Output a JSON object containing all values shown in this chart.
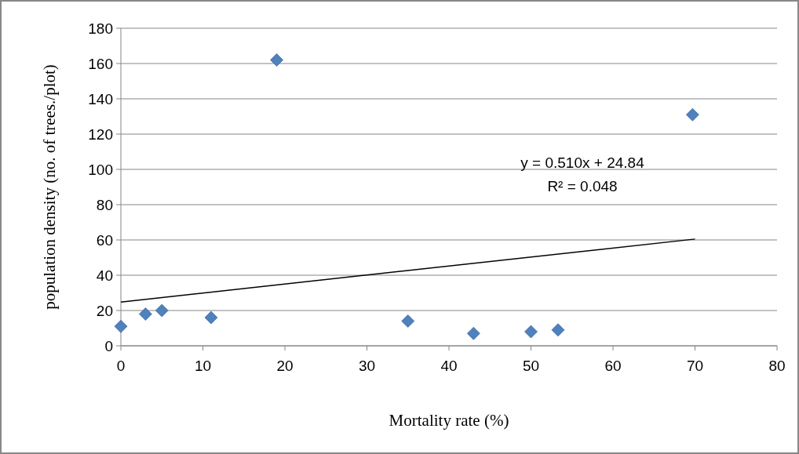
{
  "chart_data": {
    "type": "scatter",
    "xlabel": "Mortality rate (%)",
    "ylabel": "population density (no. of trees./plot)",
    "xlim": [
      0,
      80
    ],
    "xticks": [
      0,
      10,
      20,
      30,
      40,
      50,
      60,
      70,
      80
    ],
    "ylim": [
      0,
      180
    ],
    "yticks": [
      0,
      20,
      40,
      60,
      80,
      100,
      120,
      140,
      160,
      180
    ],
    "grid": "y",
    "series": [
      {
        "color": "#4f81bd",
        "marker": "diamond",
        "x": [
          0,
          3,
          5,
          11,
          19,
          35,
          43,
          50,
          53.3,
          69.7
        ],
        "values": [
          11,
          18,
          20,
          16,
          162,
          14,
          7,
          8,
          9,
          131
        ]
      },
      {
        "type": "line",
        "color": "#000000",
        "marker": "none",
        "line_style": "solid",
        "x": [
          0,
          70
        ],
        "values": [
          24.8,
          60.5
        ]
      }
    ],
    "annotations": [
      "y = 0.510x + 24.84",
      "R² = 0.048"
    ]
  }
}
